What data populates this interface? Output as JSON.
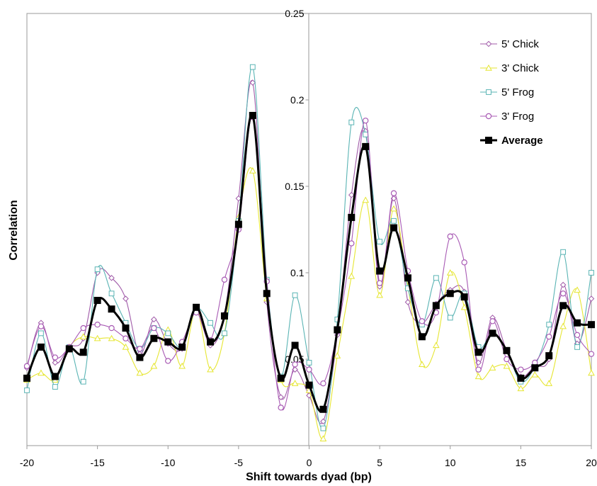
{
  "chart_data": {
    "type": "line",
    "title": "",
    "xlabel": "Shift towards dyad (bp)",
    "ylabel": "Correlation",
    "xlim": [
      -20,
      20
    ],
    "ylim": [
      0,
      0.25
    ],
    "xticks": [
      "-20",
      "-15",
      "-10",
      "-5",
      "0",
      "5",
      "10",
      "15",
      "20"
    ],
    "yticks": [
      "0.05",
      "0.1",
      "0.15",
      "0.2",
      "0.25"
    ],
    "grid": false,
    "legend_position": "top-right",
    "x": [
      -20,
      -19,
      -18,
      -17,
      -16,
      -15,
      -14,
      -13,
      -12,
      -11,
      -10,
      -9,
      -8,
      -7,
      -6,
      -5,
      -4,
      -3,
      -2,
      -1,
      0,
      1,
      2,
      3,
      4,
      5,
      6,
      7,
      8,
      9,
      10,
      11,
      12,
      13,
      14,
      15,
      16,
      17,
      18,
      19,
      20
    ],
    "series": [
      {
        "name": "5' Chick",
        "color": "#a05aa8",
        "marker": "diamond",
        "values": [
          0.045,
          0.071,
          0.048,
          0.057,
          0.062,
          0.1,
          0.097,
          0.085,
          0.053,
          0.073,
          0.059,
          0.056,
          0.079,
          0.058,
          0.076,
          0.143,
          0.21,
          0.083,
          0.028,
          0.044,
          0.029,
          0.014,
          0.064,
          0.145,
          0.182,
          0.092,
          0.143,
          0.083,
          0.071,
          0.082,
          0.09,
          0.089,
          0.048,
          0.074,
          0.055,
          0.04,
          0.046,
          0.05,
          0.093,
          0.059,
          0.085
        ]
      },
      {
        "name": "3' Chick",
        "color": "#e6e632",
        "marker": "triangle",
        "values": [
          0.038,
          0.042,
          0.038,
          0.057,
          0.063,
          0.062,
          0.062,
          0.057,
          0.042,
          0.046,
          0.067,
          0.046,
          0.079,
          0.044,
          0.065,
          0.132,
          0.159,
          0.085,
          0.038,
          0.036,
          0.032,
          0.004,
          0.052,
          0.098,
          0.142,
          0.087,
          0.137,
          0.092,
          0.047,
          0.058,
          0.1,
          0.08,
          0.04,
          0.045,
          0.046,
          0.033,
          0.041,
          0.036,
          0.069,
          0.09,
          0.042
        ]
      },
      {
        "name": "5' Frog",
        "color": "#5ab4b4",
        "marker": "square-open",
        "values": [
          0.032,
          0.065,
          0.034,
          0.057,
          0.037,
          0.102,
          0.088,
          0.071,
          0.056,
          0.068,
          0.065,
          0.057,
          0.079,
          0.071,
          0.065,
          0.13,
          0.219,
          0.096,
          0.04,
          0.087,
          0.048,
          0.01,
          0.073,
          0.187,
          0.18,
          0.118,
          0.13,
          0.091,
          0.07,
          0.097,
          0.074,
          0.088,
          0.057,
          0.065,
          0.055,
          0.037,
          0.046,
          0.07,
          0.112,
          0.057,
          0.1
        ]
      },
      {
        "name": "3' Frog",
        "color": "#a85ab4",
        "marker": "circle-open",
        "values": [
          0.046,
          0.069,
          0.051,
          0.057,
          0.068,
          0.07,
          0.068,
          0.062,
          0.056,
          0.068,
          0.049,
          0.06,
          0.077,
          0.061,
          0.096,
          0.125,
          0.19,
          0.095,
          0.022,
          0.047,
          0.044,
          0.036,
          0.066,
          0.117,
          0.188,
          0.094,
          0.146,
          0.101,
          0.072,
          0.077,
          0.121,
          0.106,
          0.044,
          0.072,
          0.05,
          0.044,
          0.048,
          0.063,
          0.088,
          0.064,
          0.053
        ]
      },
      {
        "name": "Average",
        "color": "#000000",
        "marker": "square",
        "bold": true,
        "values": [
          0.039,
          0.057,
          0.04,
          0.056,
          0.054,
          0.084,
          0.079,
          0.068,
          0.051,
          0.062,
          0.06,
          0.057,
          0.08,
          0.06,
          0.075,
          0.128,
          0.191,
          0.088,
          0.039,
          0.058,
          0.035,
          0.021,
          0.067,
          0.132,
          0.173,
          0.101,
          0.126,
          0.097,
          0.063,
          0.081,
          0.088,
          0.086,
          0.054,
          0.065,
          0.055,
          0.039,
          0.045,
          0.052,
          0.081,
          0.071,
          0.07
        ]
      }
    ]
  }
}
